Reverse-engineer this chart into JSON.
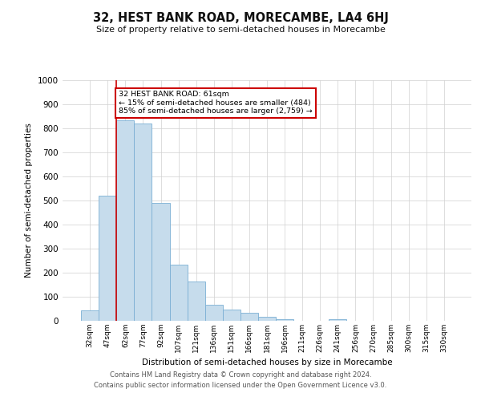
{
  "title": "32, HEST BANK ROAD, MORECAMBE, LA4 6HJ",
  "subtitle": "Size of property relative to semi-detached houses in Morecambe",
  "xlabel": "Distribution of semi-detached houses by size in Morecambe",
  "ylabel": "Number of semi-detached properties",
  "bar_labels": [
    "32sqm",
    "47sqm",
    "62sqm",
    "77sqm",
    "92sqm",
    "107sqm",
    "121sqm",
    "136sqm",
    "151sqm",
    "166sqm",
    "181sqm",
    "196sqm",
    "211sqm",
    "226sqm",
    "241sqm",
    "256sqm",
    "270sqm",
    "285sqm",
    "300sqm",
    "315sqm",
    "330sqm"
  ],
  "bar_values": [
    45,
    520,
    835,
    820,
    490,
    235,
    162,
    68,
    47,
    32,
    18,
    8,
    0,
    0,
    8,
    0,
    0,
    0,
    0,
    0,
    0
  ],
  "bar_color": "#c6dcec",
  "bar_edge_color": "#7bafd4",
  "red_line_index": 2,
  "annotation_title": "32 HEST BANK ROAD: 61sqm",
  "annotation_line1": "← 15% of semi-detached houses are smaller (484)",
  "annotation_line2": "85% of semi-detached houses are larger (2,759) →",
  "annotation_box_color": "#ffffff",
  "annotation_box_edge": "#cc0000",
  "red_line_color": "#cc0000",
  "ylim": [
    0,
    1000
  ],
  "yticks": [
    0,
    100,
    200,
    300,
    400,
    500,
    600,
    700,
    800,
    900,
    1000
  ],
  "footer1": "Contains HM Land Registry data © Crown copyright and database right 2024.",
  "footer2": "Contains public sector information licensed under the Open Government Licence v3.0.",
  "background_color": "#ffffff",
  "grid_color": "#d0d0d0"
}
